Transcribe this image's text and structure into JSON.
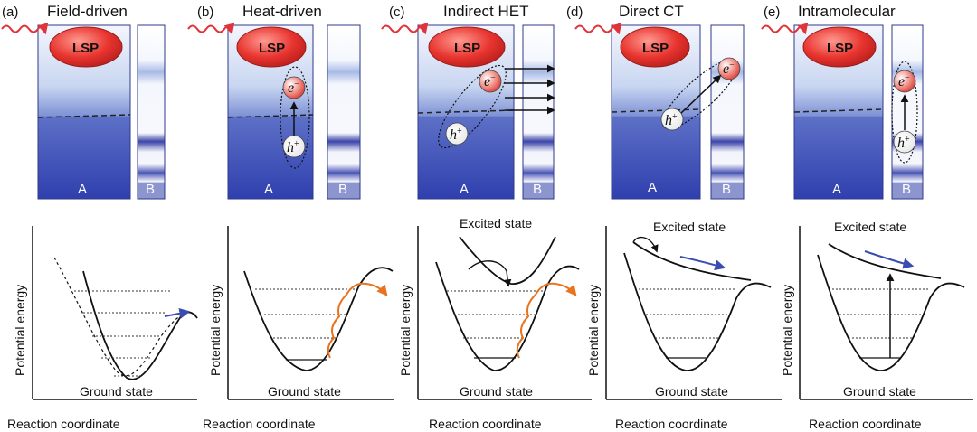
{
  "panels": [
    {
      "letter": "(a)",
      "title": "Field-driven",
      "box_a": "A",
      "box_b": "B",
      "lsp": "LSP",
      "ylabel": "Potential energy",
      "xlabel": "Reaction coordinate",
      "ground": "Ground state",
      "excited": ""
    },
    {
      "letter": "(b)",
      "title": "Heat-driven",
      "box_a": "A",
      "box_b": "B",
      "lsp": "LSP",
      "ylabel": "Potential energy",
      "xlabel": "Reaction coordinate",
      "ground": "Ground state",
      "excited": "",
      "electron": "e",
      "electron_sup": "−",
      "hole": "h",
      "hole_sup": "+"
    },
    {
      "letter": "(c)",
      "title": "Indirect HET",
      "box_a": "A",
      "box_b": "B",
      "lsp": "LSP",
      "ylabel": "Potential energy",
      "xlabel": "Reaction coordinate",
      "ground": "Ground state",
      "excited": "Excited state",
      "electron": "e",
      "electron_sup": "−",
      "hole": "h",
      "hole_sup": "+"
    },
    {
      "letter": "(d)",
      "title": "Direct CT",
      "box_a": "A",
      "box_b": "B",
      "lsp": "LSP",
      "ylabel": "Potential energy",
      "xlabel": "Reaction coordinate",
      "ground": "Ground state",
      "excited": "Excited state",
      "electron": "e",
      "electron_sup": "−",
      "hole": "h",
      "hole_sup": "+"
    },
    {
      "letter": "(e)",
      "title": "Intramolecular",
      "box_a": "A",
      "box_b": "B",
      "lsp": "LSP",
      "ylabel": "Potential energy",
      "xlabel": "Reaction coordinate",
      "ground": "Ground state",
      "excited": "Excited state",
      "electron": "e",
      "electron_sup": "−",
      "hole": "h",
      "hole_sup": "+"
    }
  ],
  "colors": {
    "lsp_fill": "#e8342f",
    "box_dark": "#3b4bb3",
    "box_light": "#eef2fb",
    "band": "#3a45a8",
    "arrow_blue": "#3b4cb0",
    "arrow_orange": "#e8741f",
    "wave_red": "#e0333a"
  }
}
